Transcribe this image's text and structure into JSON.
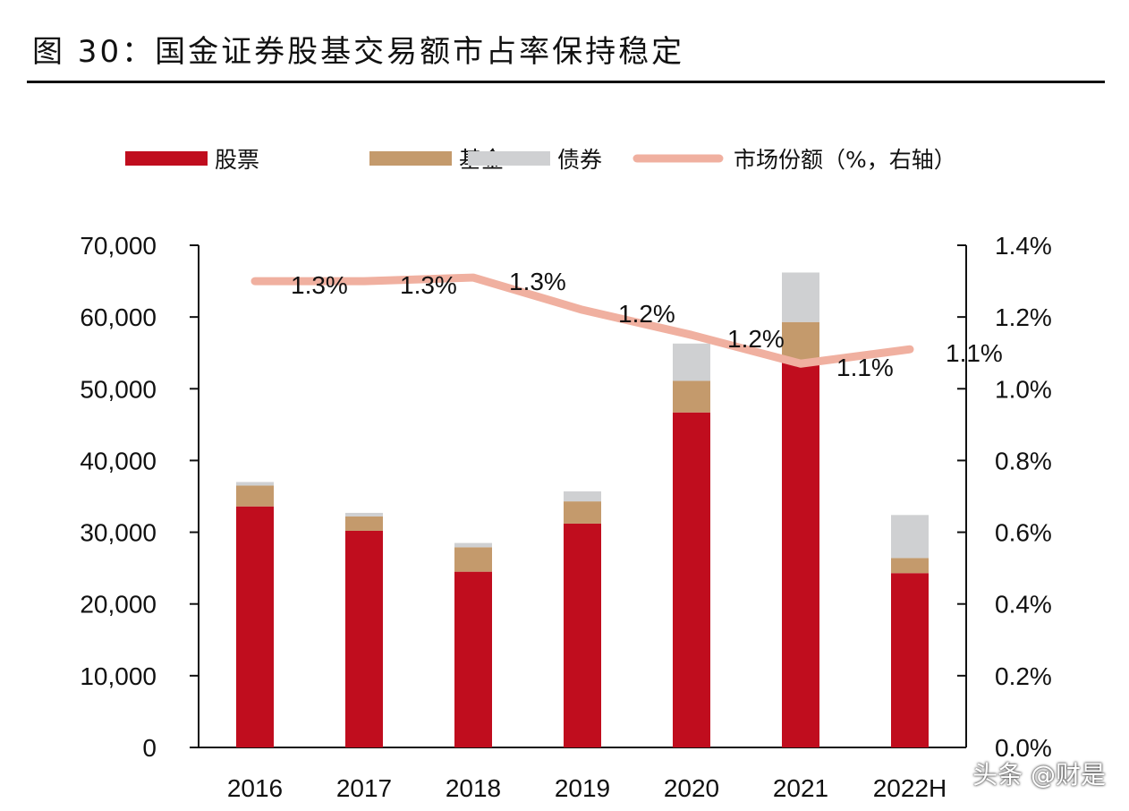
{
  "title": "图 30：国金证券股基交易额市占率保持稳定",
  "watermark": "头条 @财是",
  "chart_data": {
    "type": "bar",
    "stacked": true,
    "categories": [
      "2016",
      "2017",
      "2018",
      "2019",
      "2020",
      "2021",
      "2022H"
    ],
    "series": [
      {
        "name": "股票",
        "axis": "left",
        "color": "#c00d1e",
        "values": [
          33600,
          30200,
          24500,
          31200,
          46700,
          53700,
          24300
        ]
      },
      {
        "name": "基金",
        "axis": "left",
        "color": "#c49a6c",
        "values": [
          2900,
          2000,
          3400,
          3100,
          4400,
          5600,
          2100
        ]
      },
      {
        "name": "债券",
        "axis": "left",
        "color": "#cfd0d2",
        "values": [
          500,
          500,
          600,
          1400,
          5200,
          6900,
          6000
        ]
      },
      {
        "name": "市场份额（%，右轴）",
        "type": "line",
        "axis": "right",
        "color": "#f0b0a0",
        "values": [
          1.3,
          1.3,
          1.31,
          1.22,
          1.15,
          1.07,
          1.11
        ],
        "labels": [
          "1.3%",
          "1.3%",
          "1.3%",
          "1.2%",
          "1.2%",
          "1.1%",
          "1.1%"
        ]
      }
    ],
    "y_left": {
      "range": [
        0,
        70000
      ],
      "ticks": [
        "0",
        "10,000",
        "20,000",
        "30,000",
        "40,000",
        "50,000",
        "60,000",
        "70,000"
      ]
    },
    "y_right": {
      "range": [
        0,
        1.4
      ],
      "ticks": [
        "0.0%",
        "0.2%",
        "0.4%",
        "0.6%",
        "0.8%",
        "1.0%",
        "1.2%",
        "1.4%"
      ]
    },
    "legend_position": "top",
    "grid": false
  }
}
